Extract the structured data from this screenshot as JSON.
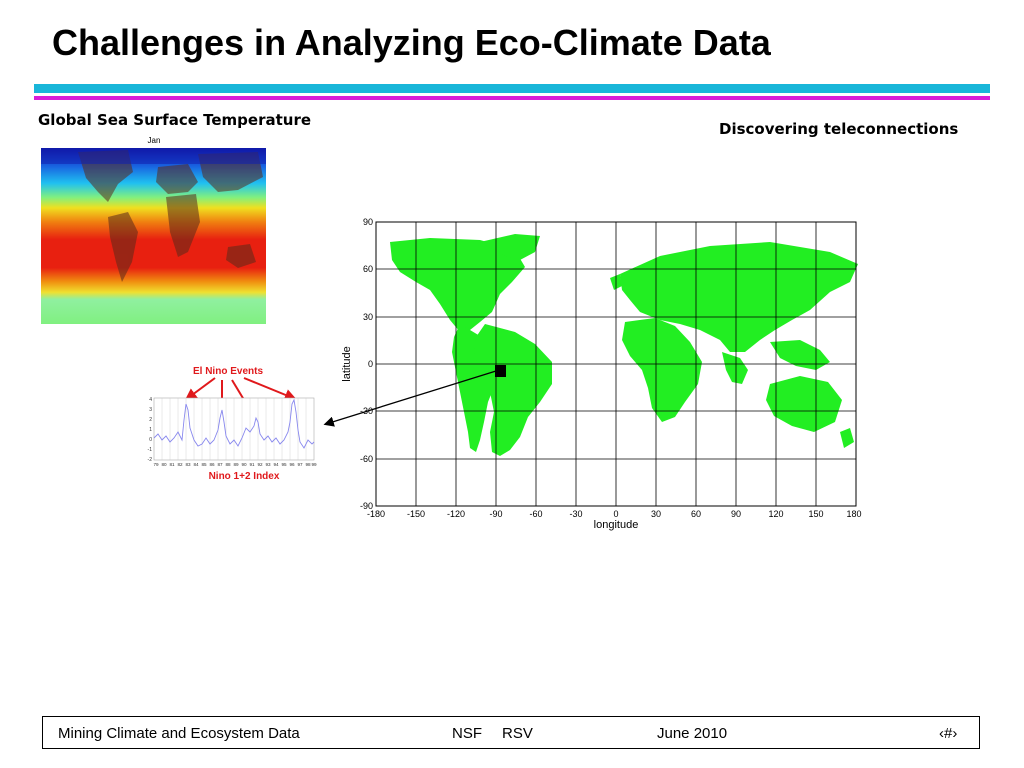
{
  "slide": {
    "title": "Challenges in Analyzing Eco-Climate Data",
    "left_heading": "Global Sea Surface Temperature",
    "right_heading": "Discovering teleconnections",
    "sst_map_label": "Jan",
    "nino_events_label": "El Nino Events",
    "nino_index_label": "Nino 1+2 Index"
  },
  "nino_chart": {
    "y_ticks": [
      "4",
      "3",
      "2",
      "1",
      "0",
      "-1",
      "-2"
    ],
    "x_ticks": [
      "79",
      "80",
      "81",
      "82",
      "83",
      "84",
      "85",
      "86",
      "87",
      "88",
      "89",
      "90",
      "91",
      "92",
      "93",
      "94",
      "95",
      "96",
      "97",
      "98",
      "99"
    ]
  },
  "world_map": {
    "xlabel": "longitude",
    "ylabel": "latitude",
    "x_ticks": [
      "-180",
      "-150",
      "-120",
      "-90",
      "-60",
      "-30",
      "0",
      "30",
      "60",
      "90",
      "120",
      "150",
      "180"
    ],
    "y_ticks": [
      "90",
      "60",
      "30",
      "0",
      "-30",
      "-60",
      "-90"
    ]
  },
  "footer": {
    "left": "Mining Climate and Ecosystem Data",
    "center_a": "NSF",
    "center_b": "RSV",
    "date": "June 2010",
    "page": "‹#›"
  },
  "colors": {
    "rule_cyan": "#19b6d9",
    "rule_magenta": "#d81ed8",
    "land_green": "#22ee22",
    "nino_red": "#e0191c",
    "index_line": "#8888ee"
  }
}
